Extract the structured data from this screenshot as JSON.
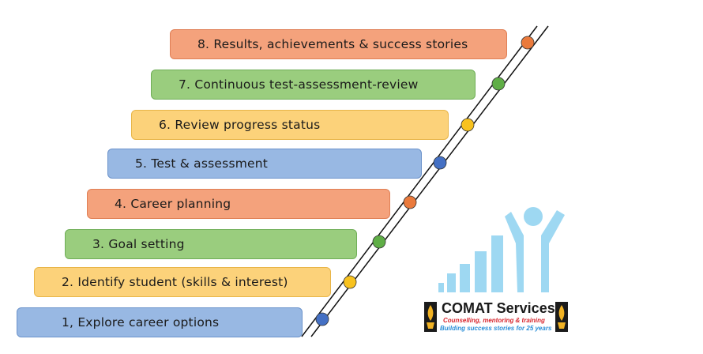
{
  "steps": [
    {
      "label": "8.  Results, achievements & success stories",
      "color": "orange"
    },
    {
      "label": "7.  Continuous test-assessment-review",
      "color": "green"
    },
    {
      "label": "6.  Review progress status",
      "color": "yellow"
    },
    {
      "label": "5.  Test & assessment",
      "color": "blue"
    },
    {
      "label": "4.  Career planning",
      "color": "orange"
    },
    {
      "label": "3.  Goal setting",
      "color": "green"
    },
    {
      "label": "2.  Identify student (skills & interest)",
      "color": "yellow"
    },
    {
      "label": "1, Explore career options",
      "color": "blue"
    }
  ],
  "brand": {
    "name": "COMAT Services",
    "tagline": "Counselling, mentoring & training",
    "slogan": "Building success stories for 25 years"
  },
  "colors": {
    "orange": "#ea7a3c",
    "green": "#5fae46",
    "yellow": "#f8c21e",
    "blue": "#4470c4",
    "logo_blue": "#9ed8f2"
  }
}
